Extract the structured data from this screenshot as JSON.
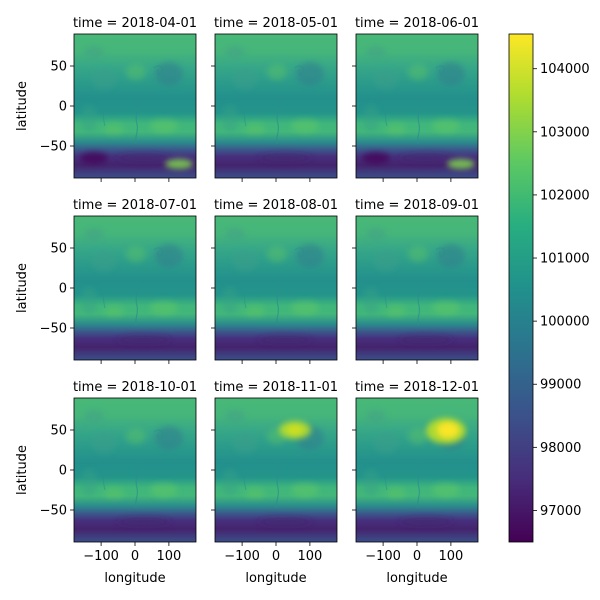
{
  "chart_data": {
    "type": "heatmap",
    "layout": "3x3 facet grid with shared axes and a shared vertical colorbar on the right",
    "colormap": "viridis",
    "panels": [
      {
        "title": "time = 2018-04-01",
        "polar_low_south": "dark purple band near -70, yellow-green patch near (150, -75)"
      },
      {
        "title": "time = 2018-05-01",
        "polar_low_south": "dark purple band near -65"
      },
      {
        "title": "time = 2018-06-01",
        "polar_low_south": "dark purple band near -70, yellow-green patch near (150, -75)"
      },
      {
        "title": "time = 2018-07-01",
        "polar_low_south": "dark purple band near -70"
      },
      {
        "title": "time = 2018-08-01",
        "polar_low_south": "dark purple band near -65"
      },
      {
        "title": "time = 2018-09-01",
        "polar_low_south": "dark purple band near -65"
      },
      {
        "title": "time = 2018-10-01",
        "polar_low_south": "dark purple band near -70"
      },
      {
        "title": "time = 2018-11-01",
        "polar_low_south": "dark purple band near -65",
        "northern_high": "yellow-green patch near (60, 50)"
      },
      {
        "title": "time = 2018-12-01",
        "polar_low_south": "dark purple band near -65",
        "northern_high": "yellow patch near (100, 50)"
      }
    ],
    "xlabel": "longitude",
    "ylabel": "latitude",
    "xlim": [
      -180,
      180
    ],
    "ylim": [
      -90,
      90
    ],
    "xticks": [
      -100,
      0,
      100
    ],
    "xtick_labels": [
      "−100",
      "0",
      "100"
    ],
    "yticks": [
      50,
      0,
      -50
    ],
    "ytick_labels": [
      "50",
      "0",
      "−50"
    ],
    "colorbar": {
      "min": 96500,
      "max": 104550,
      "ticks": [
        97000,
        98000,
        99000,
        100000,
        101000,
        102000,
        103000,
        104000
      ],
      "tick_labels": [
        "97000",
        "98000",
        "99000",
        "100000",
        "101000",
        "102000",
        "103000",
        "104000"
      ]
    }
  }
}
